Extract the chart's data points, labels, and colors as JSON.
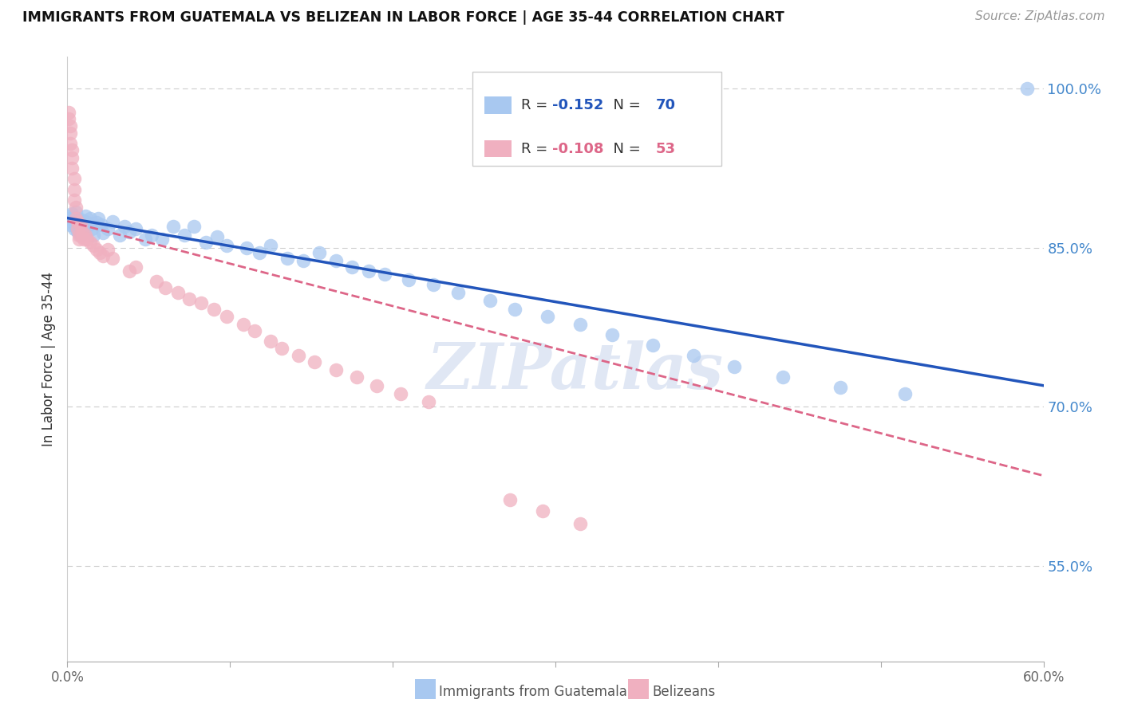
{
  "title": "IMMIGRANTS FROM GUATEMALA VS BELIZEAN IN LABOR FORCE | AGE 35-44 CORRELATION CHART",
  "source": "Source: ZipAtlas.com",
  "ylabel": "In Labor Force | Age 35-44",
  "xlim": [
    0.0,
    0.6
  ],
  "ylim": [
    0.46,
    1.03
  ],
  "xticks": [
    0.0,
    0.1,
    0.2,
    0.3,
    0.4,
    0.5,
    0.6
  ],
  "xticklabels": [
    "0.0%",
    "",
    "",
    "",
    "",
    "",
    "60.0%"
  ],
  "yticks_right": [
    0.55,
    0.7,
    0.85,
    1.0
  ],
  "yticklabels_right": [
    "55.0%",
    "70.0%",
    "85.0%",
    "100.0%"
  ],
  "grid_color": "#cccccc",
  "background_color": "#ffffff",
  "blue_color": "#a8c8f0",
  "pink_color": "#f0b0c0",
  "line_blue": "#2255bb",
  "line_pink": "#dd6688",
  "watermark": "ZIPatlas",
  "legend_r_blue": "-0.152",
  "legend_n_blue": "70",
  "legend_r_pink": "-0.108",
  "legend_n_pink": "53",
  "legend_label_blue": "Immigrants from Guatemala",
  "legend_label_pink": "Belizeans",
  "blue_x": [
    0.001,
    0.002,
    0.002,
    0.003,
    0.003,
    0.004,
    0.004,
    0.005,
    0.005,
    0.005,
    0.006,
    0.006,
    0.007,
    0.007,
    0.008,
    0.008,
    0.009,
    0.009,
    0.01,
    0.01,
    0.011,
    0.012,
    0.013,
    0.014,
    0.015,
    0.016,
    0.018,
    0.019,
    0.021,
    0.022,
    0.025,
    0.028,
    0.032,
    0.035,
    0.038,
    0.042,
    0.048,
    0.052,
    0.058,
    0.065,
    0.072,
    0.078,
    0.085,
    0.092,
    0.098,
    0.11,
    0.118,
    0.125,
    0.135,
    0.145,
    0.155,
    0.165,
    0.175,
    0.185,
    0.195,
    0.21,
    0.225,
    0.24,
    0.26,
    0.275,
    0.295,
    0.315,
    0.335,
    0.36,
    0.385,
    0.41,
    0.44,
    0.475,
    0.515,
    0.59
  ],
  "blue_y": [
    0.88,
    0.872,
    0.878,
    0.875,
    0.882,
    0.868,
    0.876,
    0.874,
    0.87,
    0.884,
    0.866,
    0.878,
    0.872,
    0.868,
    0.875,
    0.862,
    0.876,
    0.87,
    0.874,
    0.866,
    0.88,
    0.874,
    0.872,
    0.878,
    0.868,
    0.862,
    0.874,
    0.878,
    0.872,
    0.864,
    0.868,
    0.875,
    0.862,
    0.87,
    0.865,
    0.868,
    0.858,
    0.862,
    0.858,
    0.87,
    0.862,
    0.87,
    0.855,
    0.86,
    0.852,
    0.85,
    0.845,
    0.852,
    0.84,
    0.838,
    0.845,
    0.838,
    0.832,
    0.828,
    0.825,
    0.82,
    0.815,
    0.808,
    0.8,
    0.792,
    0.785,
    0.778,
    0.768,
    0.758,
    0.748,
    0.738,
    0.728,
    0.718,
    0.712,
    1.0
  ],
  "pink_x": [
    0.001,
    0.001,
    0.002,
    0.002,
    0.002,
    0.003,
    0.003,
    0.003,
    0.004,
    0.004,
    0.004,
    0.005,
    0.005,
    0.006,
    0.006,
    0.007,
    0.007,
    0.008,
    0.009,
    0.009,
    0.01,
    0.011,
    0.012,
    0.014,
    0.016,
    0.018,
    0.02,
    0.022,
    0.025,
    0.028,
    0.038,
    0.042,
    0.055,
    0.06,
    0.068,
    0.075,
    0.082,
    0.09,
    0.098,
    0.108,
    0.115,
    0.125,
    0.132,
    0.142,
    0.152,
    0.165,
    0.178,
    0.19,
    0.205,
    0.222,
    0.272,
    0.292,
    0.315
  ],
  "pink_y": [
    0.978,
    0.972,
    0.965,
    0.958,
    0.948,
    0.942,
    0.935,
    0.925,
    0.915,
    0.905,
    0.895,
    0.888,
    0.878,
    0.875,
    0.868,
    0.862,
    0.858,
    0.872,
    0.865,
    0.86,
    0.858,
    0.862,
    0.858,
    0.855,
    0.852,
    0.848,
    0.845,
    0.842,
    0.848,
    0.84,
    0.828,
    0.832,
    0.818,
    0.812,
    0.808,
    0.802,
    0.798,
    0.792,
    0.785,
    0.778,
    0.772,
    0.762,
    0.755,
    0.748,
    0.742,
    0.735,
    0.728,
    0.72,
    0.712,
    0.705,
    0.612,
    0.602,
    0.59
  ]
}
